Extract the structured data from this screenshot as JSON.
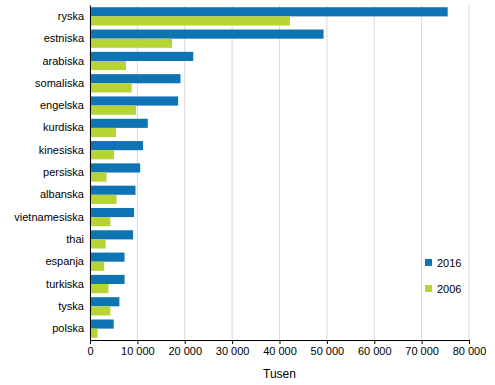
{
  "chart_data": {
    "type": "bar",
    "orientation": "horizontal",
    "x_label": "Tusen",
    "categories": [
      "ryska",
      "estniska",
      "arabiska",
      "somaliska",
      "engelska",
      "kurdiska",
      "kinesiska",
      "persiska",
      "albanska",
      "vietnamesiska",
      "thai",
      "espanja",
      "turkiska",
      "tyska",
      "polska"
    ],
    "series": [
      {
        "name": "2016",
        "color": "#0f74b3",
        "values": [
          75500,
          49300,
          21800,
          19100,
          18600,
          12200,
          11200,
          10600,
          9600,
          9300,
          9100,
          7300,
          7300,
          6200,
          5000
        ]
      },
      {
        "name": "2006",
        "color": "#b6d434",
        "values": [
          42200,
          17300,
          7600,
          8800,
          9700,
          5500,
          5100,
          3500,
          5600,
          4300,
          3300,
          3000,
          3900,
          4300,
          1600
        ]
      }
    ],
    "xlim": [
      0,
      80000
    ],
    "xticks": [
      0,
      {
        "value": 10000,
        "label": "10 000"
      },
      {
        "value": 20000,
        "label": "20 000"
      },
      {
        "value": 30000,
        "label": "30 000"
      },
      {
        "value": 40000,
        "label": "40 000"
      },
      {
        "value": 50000,
        "label": "50 000"
      },
      {
        "value": 60000,
        "label": "60 000"
      },
      {
        "value": 70000,
        "label": "70 000"
      },
      {
        "value": 80000,
        "label": "80 000"
      }
    ],
    "grid": true,
    "legend": "lower right"
  }
}
